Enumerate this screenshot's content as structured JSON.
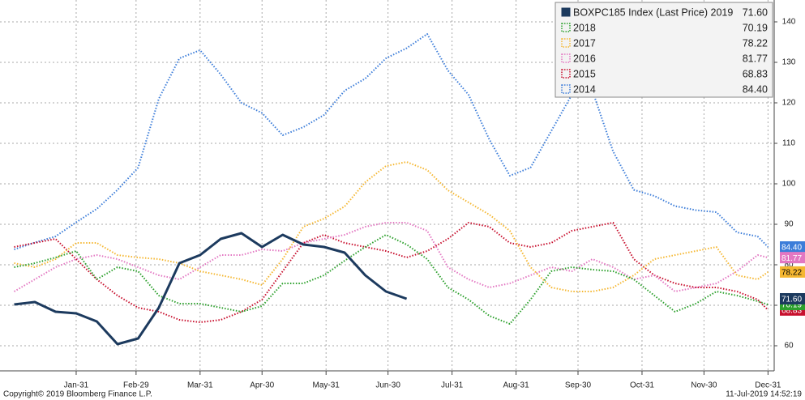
{
  "chart_data": {
    "type": "line",
    "x": [
      1,
      11,
      21,
      31,
      41,
      51,
      61,
      71,
      81,
      91,
      101,
      111,
      121,
      131,
      141,
      151,
      161,
      171,
      181,
      191,
      201,
      211,
      221,
      231,
      241,
      251,
      261,
      271,
      281,
      291,
      301,
      311,
      321,
      331,
      341,
      351,
      361,
      366
    ],
    "xlim": [
      0,
      369
    ],
    "xticks": [
      {
        "value": 31,
        "label": "Jan-31"
      },
      {
        "value": 60,
        "label": "Feb-29"
      },
      {
        "value": 91,
        "label": "Mar-31"
      },
      {
        "value": 121,
        "label": "Apr-30"
      },
      {
        "value": 152,
        "label": "May-31"
      },
      {
        "value": 182,
        "label": "Jun-30"
      },
      {
        "value": 213,
        "label": "Jul-31"
      },
      {
        "value": 244,
        "label": "Aug-31"
      },
      {
        "value": 274,
        "label": "Sep-30"
      },
      {
        "value": 305,
        "label": "Oct-31"
      },
      {
        "value": 335,
        "label": "Nov-30"
      },
      {
        "value": 366,
        "label": "Dec-31"
      }
    ],
    "ylim": [
      54.4,
      145.4
    ],
    "yticks": [
      60,
      70,
      80,
      90,
      100,
      110,
      120,
      130,
      140
    ],
    "grid": true,
    "legend": "top-right",
    "series": [
      {
        "name": "BOXPC185 Index (Last Price) 2019",
        "last_label": "71.60",
        "color": "#1c3a5e",
        "style": "solid",
        "values": [
          70.2,
          70.8,
          68.4,
          68,
          66,
          60.4,
          61.8,
          69.4,
          80.4,
          82.4,
          86.4,
          87.8,
          84.4,
          87.4,
          85,
          84.4,
          83,
          77.4,
          73.4,
          71.6,
          null,
          null,
          null,
          null,
          null,
          null,
          null,
          null,
          null,
          null,
          null,
          null,
          null,
          null,
          null,
          null,
          null,
          null
        ]
      },
      {
        "name": "2018",
        "last_label": "70.19",
        "color": "#2ca02c",
        "style": "dotted",
        "values": [
          79.4,
          80.4,
          81.8,
          83.4,
          76.4,
          79.4,
          78.4,
          72.4,
          70.4,
          70.4,
          69.4,
          68.4,
          69.8,
          75.4,
          75.4,
          77.4,
          81,
          84.4,
          87.4,
          85,
          81.4,
          74.4,
          71.4,
          67.4,
          65.4,
          71.4,
          78.4,
          79.4,
          78.8,
          78.4,
          76.4,
          72.4,
          68.4,
          70.4,
          73.4,
          72.4,
          71,
          70.19
        ]
      },
      {
        "name": "2017",
        "last_label": "78.22",
        "color": "#f5b731",
        "style": "dotted",
        "values": [
          80.4,
          79.4,
          81.4,
          85.4,
          85.4,
          82.4,
          81.8,
          81.4,
          80.4,
          78.4,
          77.4,
          76.4,
          75,
          81.4,
          89.4,
          91.4,
          94.4,
          100.4,
          104.4,
          105.4,
          103.4,
          98.4,
          95.4,
          92.4,
          88.4,
          79.4,
          74.4,
          73.4,
          73.4,
          74.4,
          77.4,
          81.4,
          82.4,
          83.4,
          84.4,
          77.4,
          76.4,
          78.22
        ]
      },
      {
        "name": "2016",
        "last_label": "81.77",
        "color": "#e377c2",
        "style": "dotted",
        "values": [
          73.4,
          76.4,
          79.4,
          81.4,
          82.4,
          81.4,
          79.4,
          77.4,
          76.4,
          79.4,
          82.4,
          82.4,
          83.8,
          83.4,
          85.4,
          86.4,
          87.4,
          89.4,
          90.4,
          90.4,
          88.4,
          79.4,
          76.4,
          74.4,
          75.4,
          77.4,
          79.4,
          78.4,
          81.4,
          79.4,
          76.4,
          77.4,
          73.4,
          74.4,
          75.4,
          78.4,
          82.4,
          81.77
        ]
      },
      {
        "name": "2015",
        "last_label": "68.83",
        "color": "#c8102e",
        "style": "dotted",
        "values": [
          84.4,
          85.4,
          86.4,
          81.4,
          76.4,
          72.4,
          69.4,
          68.4,
          66.4,
          65.8,
          66.4,
          68.4,
          71.4,
          78.4,
          85.4,
          87.4,
          85.4,
          84.4,
          83.4,
          81.8,
          83.4,
          86.4,
          90.4,
          89.4,
          85.4,
          84.4,
          85.4,
          88.4,
          89.4,
          90.4,
          81.4,
          77.4,
          75.4,
          74.4,
          74.4,
          73.4,
          71.4,
          68.83
        ]
      },
      {
        "name": "2014",
        "last_label": "84.40",
        "color": "#3c7dd9",
        "style": "dotted",
        "values": [
          83.8,
          85.5,
          87,
          90.5,
          93.8,
          98.5,
          104,
          121,
          131,
          133,
          127,
          120,
          117.5,
          112,
          114,
          117,
          123,
          126,
          131,
          133.5,
          137,
          128,
          122,
          111,
          102,
          104,
          113,
          122,
          123,
          108,
          98.5,
          97,
          94.5,
          93.5,
          93,
          88,
          87,
          84.4
        ]
      }
    ],
    "copyright": "Copyright© 2019 Bloomberg Finance L.P.",
    "timestamp": "11-Jul-2019 14:52:19"
  }
}
